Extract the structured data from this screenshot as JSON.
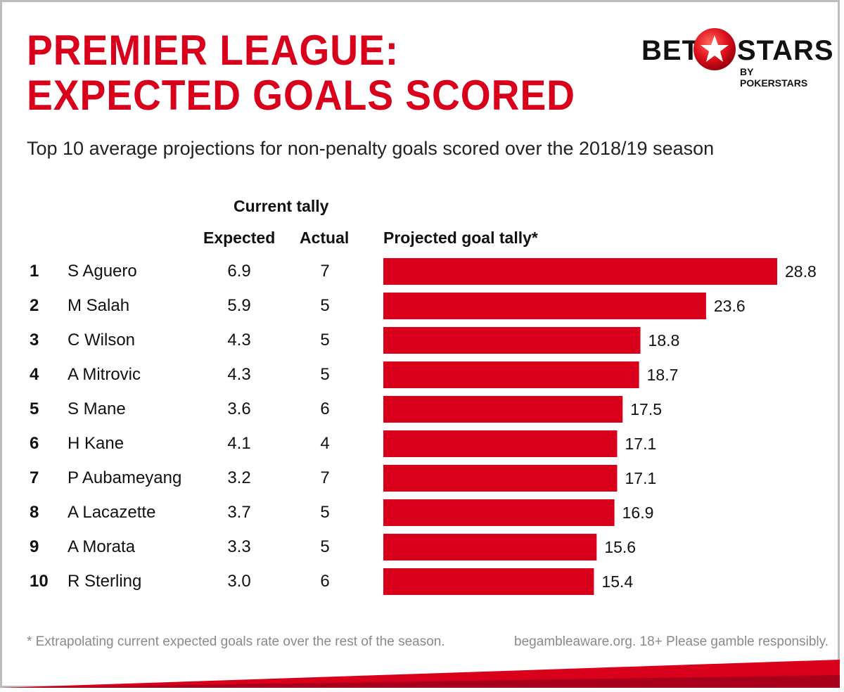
{
  "header": {
    "title_line1": "PREMIER LEAGUE:",
    "title_line2": "EXPECTED GOALS SCORED",
    "subtitle": "Top 10 average projections for non-penalty goals scored over the 2018/19 season"
  },
  "logo": {
    "bet": "BET",
    "stars": "STARS",
    "by": "BY POKERSTARS"
  },
  "colors": {
    "accent": "#d9001b",
    "text": "#111111",
    "muted": "#8a8a8a"
  },
  "columns": {
    "group": "Current tally",
    "expected": "Expected",
    "actual": "Actual",
    "projected": "Projected goal tally*"
  },
  "chart_data": {
    "type": "bar",
    "orientation": "horizontal",
    "categories": [
      "S Aguero",
      "M Salah",
      "C Wilson",
      "A Mitrovic",
      "S Mane",
      "H Kane",
      "P Aubameyang",
      "A Lacazette",
      "A Morata",
      "R Sterling"
    ],
    "ranks": [
      "1",
      "2",
      "3",
      "4",
      "5",
      "6",
      "7",
      "8",
      "9",
      "10"
    ],
    "expected": [
      "6.9",
      "5.9",
      "4.3",
      "4.3",
      "3.6",
      "4.1",
      "3.2",
      "3.7",
      "3.3",
      "3.0"
    ],
    "actual": [
      "7",
      "5",
      "5",
      "5",
      "6",
      "4",
      "7",
      "5",
      "5",
      "6"
    ],
    "values": [
      28.8,
      23.6,
      18.8,
      18.7,
      17.5,
      17.1,
      17.1,
      16.9,
      15.6,
      15.4
    ],
    "value_labels": [
      "28.8",
      "23.6",
      "18.8",
      "18.7",
      "17.5",
      "17.1",
      "17.1",
      "16.9",
      "15.6",
      "15.4"
    ],
    "xlim": [
      0,
      28.8
    ],
    "grid": false,
    "color": "#d9001b"
  },
  "footer": {
    "footnote": "* Extrapolating current expected goals rate over the rest of the season.",
    "disclaimer": "begambleaware.org. 18+ Please gamble responsibly."
  }
}
